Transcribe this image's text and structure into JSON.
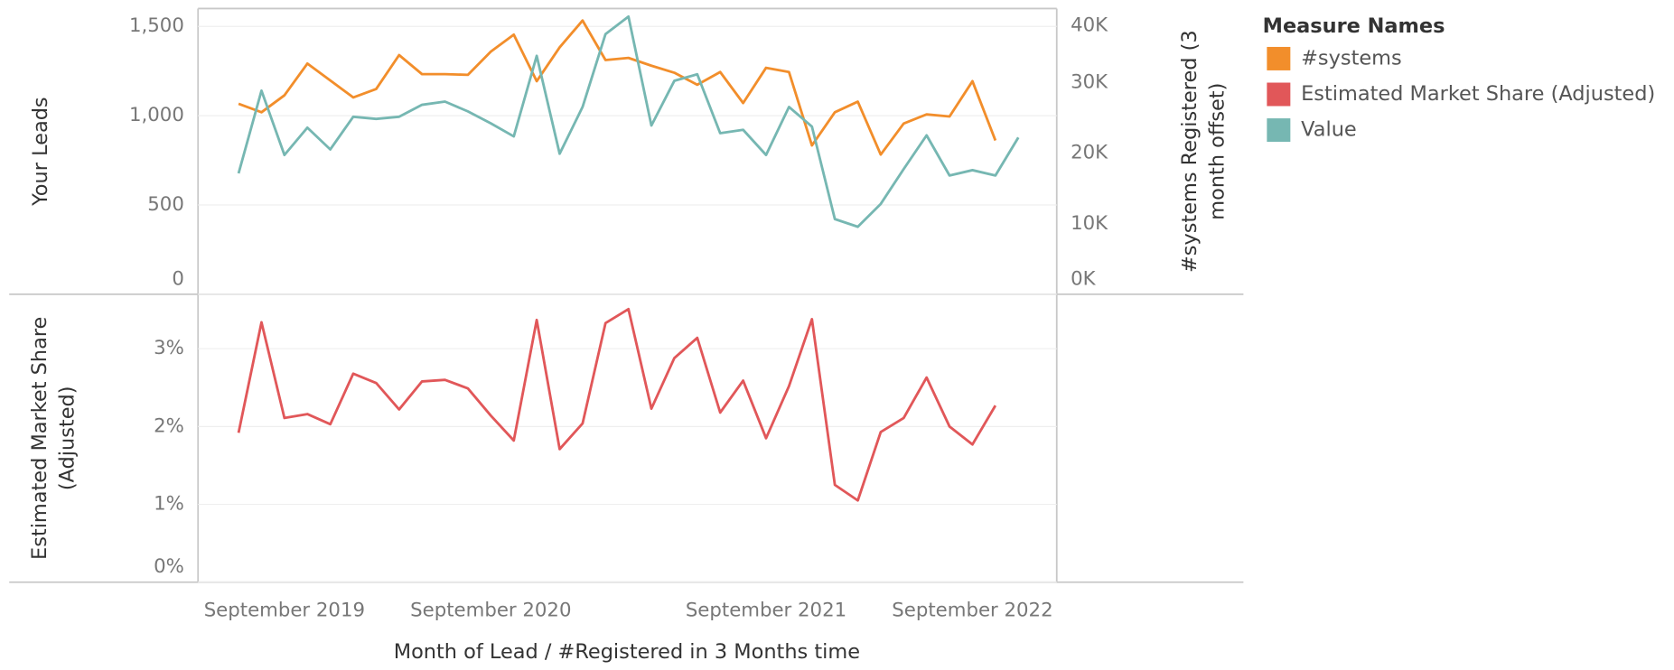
{
  "chart_data": [
    {
      "type": "line",
      "legend_title": "Measure Names",
      "ylabel": [
        "Your Leads"
      ],
      "y2label": [
        "#systems Registered (3",
        "month offset)"
      ],
      "ylim": [
        0,
        1600
      ],
      "yticks": [
        0,
        500,
        {
          "value": 1000,
          "label": "1,000"
        },
        {
          "value": 1500,
          "label": "1,500"
        }
      ],
      "y2lim": [
        0,
        40500
      ],
      "y2ticks": [
        {
          "value": 0,
          "label": "0K"
        },
        {
          "value": 10000,
          "label": "10K"
        },
        {
          "value": 20000,
          "label": "20K"
        },
        {
          "value": 30000,
          "label": "30K"
        },
        {
          "value": 40000,
          "label": "40K"
        }
      ],
      "grid": true,
      "series": [
        {
          "name": "#systems",
          "color": "#f28e2b",
          "axis": "y2",
          "values": [
            27000,
            25800,
            28200,
            32700,
            30300,
            27900,
            29100,
            33900,
            31200,
            31200,
            31100,
            34400,
            36800,
            30200,
            35000,
            38800,
            33200,
            33500,
            32400,
            31400,
            29700,
            31500,
            27100,
            32100,
            31500,
            21100,
            25800,
            27300,
            19800,
            24200,
            25500,
            25200,
            30200,
            21800,
            null
          ]
        },
        {
          "name": "Value",
          "color": "#76b7b2",
          "axis": "y",
          "values": [
            677,
            1140,
            780,
            933,
            811,
            994,
            982,
            994,
            1061,
            1079,
            1024,
            957,
            884,
            1335,
            787,
            1049,
            1457,
            1555,
            945,
            1195,
            1232,
            902,
            921,
            780,
            1049,
            939,
            421,
            378,
            506,
            701,
            890,
            665,
            695,
            665,
            878
          ]
        }
      ]
    },
    {
      "type": "line",
      "xlabel": "Month of Lead / #Registered in 3 Months time",
      "ylabel": [
        "Estimated Market Share",
        "(Adjusted)"
      ],
      "categories": [
        null,
        null,
        "September 2019",
        null,
        null,
        null,
        null,
        null,
        null,
        null,
        null,
        "September 2020",
        null,
        null,
        null,
        null,
        null,
        null,
        null,
        null,
        null,
        null,
        null,
        "September 2021",
        null,
        null,
        null,
        null,
        null,
        null,
        null,
        null,
        "September 2022",
        null,
        null
      ],
      "ylim": [
        0,
        3.7
      ],
      "yticks": [
        {
          "value": 0,
          "label": "0%"
        },
        {
          "value": 1,
          "label": "1%"
        },
        {
          "value": 2,
          "label": "2%"
        },
        {
          "value": 3,
          "label": "3%"
        }
      ],
      "grid": true,
      "series": [
        {
          "name": "Estimated Market Share (Adjusted)",
          "color": "#e15759",
          "axis": "y",
          "values": [
            1.92,
            3.34,
            2.11,
            2.16,
            2.03,
            2.68,
            2.56,
            2.22,
            2.58,
            2.6,
            2.49,
            2.14,
            1.82,
            3.37,
            1.71,
            2.04,
            3.33,
            3.51,
            2.23,
            2.88,
            3.14,
            2.18,
            2.59,
            1.85,
            2.52,
            3.38,
            1.25,
            1.05,
            1.93,
            2.11,
            2.63,
            2.0,
            1.77,
            2.27,
            null
          ]
        }
      ]
    }
  ]
}
